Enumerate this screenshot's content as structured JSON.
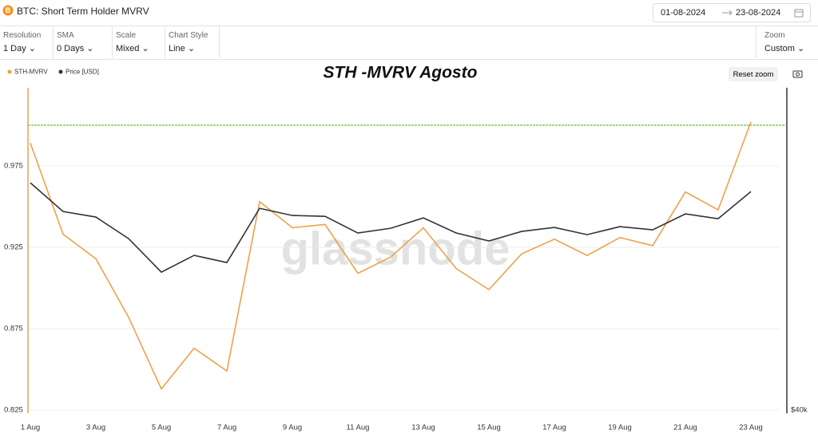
{
  "header": {
    "title": "BTC: Short Term Holder MVRV",
    "date_from": "01-08-2024",
    "date_to": "23-08-2024"
  },
  "controls": [
    {
      "label": "Resolution",
      "value": "1 Day"
    },
    {
      "label": "SMA",
      "value": "0 Days"
    },
    {
      "label": "Scale",
      "value": "Mixed"
    },
    {
      "label": "Chart Style",
      "value": "Line"
    }
  ],
  "zoom": {
    "label": "Zoom",
    "value": "Custom"
  },
  "reset_zoom": "Reset zoom",
  "watermark": "glassnode",
  "chart_data": {
    "type": "line",
    "title": "STH -MVRV Agosto",
    "categories": [
      "1 Aug",
      null,
      "3 Aug",
      null,
      "5 Aug",
      null,
      "7 Aug",
      null,
      "9 Aug",
      null,
      "11 Aug",
      null,
      "13 Aug",
      null,
      "15 Aug",
      null,
      "17 Aug",
      null,
      "19 Aug",
      null,
      "21 Aug",
      null,
      "23 Aug"
    ],
    "series": [
      {
        "name": "STH-MVRV",
        "color": "#f0a04b",
        "values": [
          0.989,
          0.933,
          0.918,
          0.882,
          0.838,
          0.863,
          0.849,
          0.953,
          0.937,
          0.939,
          0.909,
          0.919,
          0.937,
          0.912,
          0.899,
          0.921,
          0.93,
          0.92,
          0.931,
          0.926,
          0.959,
          0.948,
          1.002
        ]
      },
      {
        "name": "Price [USD]",
        "color": "#333333",
        "axis": "y2",
        "values": [
          64680,
          61560,
          60960,
          58620,
          54980,
          56800,
          56020,
          61910,
          61130,
          61040,
          59230,
          59740,
          60870,
          59230,
          58360,
          59400,
          59830,
          59050,
          59920,
          59570,
          61300,
          60780,
          63730
        ]
      }
    ],
    "ylim": [
      0.825,
      1.023
    ],
    "yticks": [
      0.825,
      0.875,
      0.925,
      0.975
    ],
    "y2lim": [
      40000,
      75000
    ],
    "y2ticks": [
      {
        "value": 40000,
        "label": "$40k"
      }
    ],
    "reference_line": {
      "value": 1.0,
      "color": "#7cc04a"
    },
    "grid": true,
    "legend": "top-left"
  }
}
